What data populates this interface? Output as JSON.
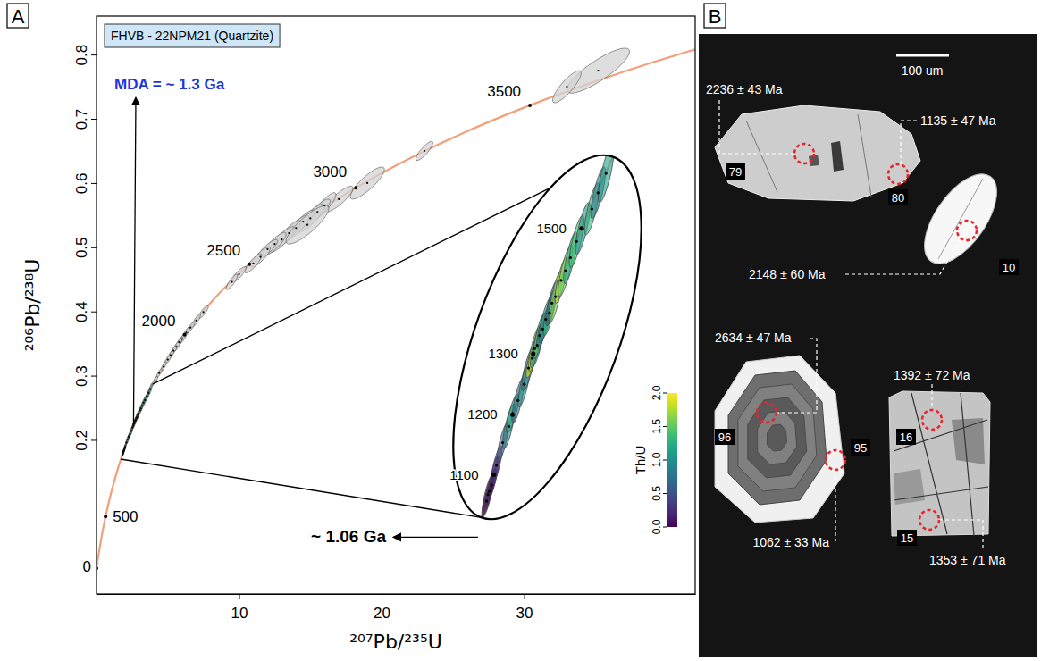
{
  "chart_data": {
    "type": "concordia",
    "panel_label": "A",
    "title": "FHVB - 22NPM21 (Quartzite)",
    "x_label": "²⁰⁷Pb/²³⁵U",
    "y_label": "²⁰⁶Pb/²³⁸U",
    "xlim": [
      0,
      42
    ],
    "ylim": [
      -0.04,
      0.86
    ],
    "xticks": [
      10,
      20,
      30
    ],
    "yticks": [
      0.2,
      0.3,
      0.4,
      0.5,
      0.6,
      0.7,
      0.8
    ],
    "concordia": {
      "ages": [
        0,
        250,
        500,
        750,
        1000,
        1100,
        1200,
        1300,
        1400,
        1500,
        1600,
        1700,
        2000,
        2250,
        2500,
        2750,
        3000,
        3250,
        3500,
        3750,
        4000
      ],
      "x": [
        0,
        0.2792,
        0.6362,
        1.093,
        1.6774,
        1.9546,
        2.2603,
        2.5976,
        2.9701,
        3.3811,
        3.8344,
        4.3349,
        6.1688,
        8.1701,
        10.73,
        14.0051,
        18.193,
        23.5502,
        30.406,
        39.172,
        50.38
      ],
      "y": [
        0,
        0.03954,
        0.08065,
        0.12338,
        0.16782,
        0.1861,
        0.2046,
        0.2234,
        0.2426,
        0.262,
        0.2817,
        0.3018,
        0.36376,
        0.4177,
        0.47375,
        0.532,
        0.59265,
        0.6556,
        0.72104,
        0.789,
        0.8598
      ],
      "labels": [
        0,
        500,
        2000,
        2500,
        3000,
        3500
      ],
      "inset_labels": [
        1100,
        1200,
        1300,
        1500
      ]
    },
    "series": [
      {
        "color": "#d3d3d3",
        "x": [
          35.2,
          33.0,
          23.0,
          19.0,
          17.0,
          16.0,
          15.5,
          15.0,
          14.5,
          14.0,
          13.5,
          13.0,
          14.8,
          12.5,
          12.0,
          11.5,
          11.0,
          10.0,
          9.5,
          7.5,
          7.0,
          6.6,
          6.3,
          6.0,
          5.8,
          5.6,
          5.4,
          5.2,
          5.0,
          4.7,
          4.4,
          4.1,
          1.84,
          1.86,
          1.88,
          1.92,
          1.96,
          2.0,
          2.1,
          2.2,
          2.26,
          2.35,
          2.45,
          2.52,
          2.58,
          2.62,
          2.66,
          2.7,
          2.75,
          2.8,
          2.86,
          2.9,
          2.96,
          3.05,
          3.12,
          3.2,
          3.3,
          3.4,
          3.55,
          3.65,
          3.78
        ],
        "y": [
          0.775,
          0.75,
          0.65,
          0.6,
          0.575,
          0.565,
          0.555,
          0.545,
          0.54,
          0.53,
          0.522,
          0.512,
          0.535,
          0.505,
          0.497,
          0.485,
          0.475,
          0.458,
          0.446,
          0.399,
          0.386,
          0.375,
          0.367,
          0.357,
          0.352,
          0.345,
          0.339,
          0.332,
          0.325,
          0.314,
          0.304,
          0.292,
          0.178,
          0.18,
          0.181,
          0.183,
          0.186,
          0.189,
          0.196,
          0.201,
          0.205,
          0.209,
          0.214,
          0.219,
          0.222,
          0.225,
          0.226,
          0.229,
          0.231,
          0.234,
          0.236,
          0.239,
          0.241,
          0.246,
          0.249,
          0.253,
          0.258,
          0.262,
          0.268,
          0.273,
          0.279
        ],
        "x_err": [
          2.2,
          1.0,
          0.6,
          1.2,
          1.0,
          0.8,
          0.9,
          1.0,
          0.8,
          0.9,
          0.8,
          0.9,
          1.5,
          0.8,
          0.7,
          0.7,
          0.6,
          0.5,
          0.4,
          0.35,
          0.3,
          0.3,
          0.25,
          0.3,
          0.25,
          0.3,
          0.25,
          0.25,
          0.25,
          0.2,
          0.2,
          0.2,
          0.08,
          0.09,
          0.07,
          0.08,
          0.08,
          0.09,
          0.09,
          0.1,
          0.1,
          0.1,
          0.1,
          0.11,
          0.1,
          0.1,
          0.11,
          0.1,
          0.1,
          0.11,
          0.1,
          0.1,
          0.11,
          0.1,
          0.12,
          0.11,
          0.12,
          0.12,
          0.12,
          0.12,
          0.13
        ],
        "y_err": [
          0.035,
          0.025,
          0.015,
          0.025,
          0.02,
          0.02,
          0.02,
          0.022,
          0.018,
          0.02,
          0.02,
          0.02,
          0.03,
          0.018,
          0.015,
          0.016,
          0.015,
          0.012,
          0.012,
          0.01,
          0.01,
          0.009,
          0.009,
          0.009,
          0.008,
          0.009,
          0.008,
          0.008,
          0.008,
          0.008,
          0.007,
          0.007,
          0.005,
          0.006,
          0.005,
          0.005,
          0.006,
          0.006,
          0.006,
          0.007,
          0.006,
          0.007,
          0.007,
          0.007,
          0.006,
          0.007,
          0.007,
          0.007,
          0.006,
          0.007,
          0.007,
          0.007,
          0.008,
          0.007,
          0.008,
          0.008,
          0.008,
          0.008,
          0.008,
          0.008,
          0.009
        ],
        "rho": [
          0.85,
          0.85,
          0.85,
          0.85,
          0.85,
          0.85,
          0.85,
          0.85,
          0.85,
          0.85,
          0.85,
          0.85,
          0.85,
          0.85,
          0.85,
          0.85,
          0.85,
          0.85,
          0.85,
          0.85,
          0.85,
          0.85,
          0.85,
          0.85,
          0.85,
          0.85,
          0.85,
          0.85,
          0.85,
          0.85,
          0.85,
          0.85,
          0.8,
          0.8,
          0.8,
          0.8,
          0.8,
          0.8,
          0.8,
          0.8,
          0.8,
          0.8,
          0.8,
          0.8,
          0.8,
          0.8,
          0.8,
          0.8,
          0.8,
          0.8,
          0.8,
          0.8,
          0.8,
          0.8,
          0.8,
          0.8,
          0.8,
          0.8,
          0.8,
          0.8,
          0.8
        ],
        "th_u": [
          null,
          null,
          null,
          null,
          null,
          null,
          null,
          null,
          null,
          null,
          null,
          null,
          null,
          null,
          null,
          null,
          null,
          null,
          null,
          null,
          null,
          null,
          null,
          null,
          null,
          null,
          null,
          null,
          null,
          null,
          null,
          null,
          0.1,
          0.05,
          0.15,
          0.2,
          0.0,
          0.3,
          0.6,
          0.9,
          1.2,
          0.7,
          1.0,
          0.8,
          1.9,
          1.7,
          0.9,
          1.4,
          0.6,
          1.1,
          1.3,
          0.5,
          1.6,
          1.8,
          1.5,
          1.2,
          1.4,
          1.0,
          1.3,
          0.8,
          1.1
        ]
      }
    ],
    "inset": {
      "xlim": [
        1.7,
        3.95
      ],
      "ylim": [
        0.17,
        0.287
      ]
    },
    "colorbar": {
      "label": "Th/U",
      "range": [
        0,
        2
      ],
      "ticks": [
        {
          "value": 0,
          "label": "0.0"
        },
        0.5,
        {
          "value": 1,
          "label": "1.0"
        },
        1.5,
        {
          "value": 2,
          "label": "2.0"
        }
      ]
    },
    "annotations": [
      {
        "text": "MDA = ~ 1.3 Ga",
        "x": 2.5976,
        "y": 0.2234,
        "color": "#1f35e0"
      },
      {
        "text": "~ 1.06 Ga"
      }
    ]
  },
  "panel_b": {
    "panel_label": "B",
    "scale_bar": "100 um",
    "spots": [
      {
        "spot": "79",
        "age": "2236 ± 43 Ma"
      },
      {
        "spot": "80",
        "age": "1135 ± 47 Ma"
      },
      {
        "spot": "10",
        "age": "2148 ± 60 Ma"
      },
      {
        "spot": "96",
        "age": "2634 ± 47 Ma"
      },
      {
        "spot": "95",
        "age": "1062 ± 33 Ma"
      },
      {
        "spot": "16",
        "age": "1392 ± 72 Ma"
      },
      {
        "spot": "15",
        "age": "1353 ± 71 Ma"
      }
    ]
  }
}
